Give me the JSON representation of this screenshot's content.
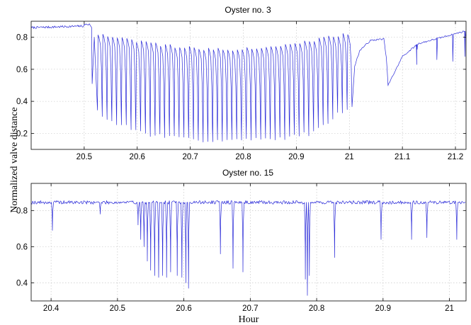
{
  "shared": {
    "ylabel": "Normalized valve distance",
    "xlabel": "Hour"
  },
  "chart_data": [
    {
      "type": "line",
      "title": "Oyster no. 3",
      "xlim": [
        20.4,
        21.22
      ],
      "ylim": [
        0.1,
        0.9
      ],
      "xticks": [
        20.5,
        20.6,
        20.7,
        20.8,
        20.9,
        21,
        21.1,
        21.2
      ],
      "xtick_labels": [
        "20.5",
        "20.6",
        "20.7",
        "20.8",
        "20.9",
        "21",
        "21.1",
        "21.2"
      ],
      "yticks": [
        0.2,
        0.4,
        0.6,
        0.8
      ],
      "ytick_labels": [
        "0.2",
        "0.4",
        "0.6",
        "0.8"
      ],
      "grid": true,
      "color": "#2a2ad8",
      "baseline_segments": [
        {
          "x": [
            20.4,
            20.5
          ],
          "y": 0.86
        },
        {
          "x": [
            20.5,
            20.51
          ],
          "y": 0.88
        }
      ],
      "drop": {
        "x": 20.515,
        "y": 0.51
      },
      "oscillation": {
        "x": [
          20.525,
          21.005
        ],
        "cycles": 53,
        "peak_y": [
          0.82,
          0.75,
          0.72,
          0.75,
          0.82
        ],
        "trough_y": [
          0.3,
          0.2,
          0.16,
          0.16,
          0.16,
          0.2,
          0.38
        ]
      },
      "recovery": [
        {
          "x": 21.01,
          "y": 0.62
        },
        {
          "x": 21.02,
          "y": 0.72
        },
        {
          "x": 21.04,
          "y": 0.78
        },
        {
          "x": 21.065,
          "y": 0.79
        },
        {
          "x": 21.07,
          "y": 0.66
        },
        {
          "x": 21.073,
          "y": 0.5
        },
        {
          "x": 21.085,
          "y": 0.58
        },
        {
          "x": 21.1,
          "y": 0.68
        },
        {
          "x": 21.13,
          "y": 0.76
        },
        {
          "x": 21.22,
          "y": 0.84
        }
      ],
      "spikes": [
        {
          "x": 21.127,
          "y": 0.63
        },
        {
          "x": 21.165,
          "y": 0.66
        },
        {
          "x": 21.195,
          "y": 0.65
        },
        {
          "x": 21.218,
          "y": 0.68
        }
      ]
    },
    {
      "type": "line",
      "title": "Oyster no. 15",
      "xlim": [
        20.37,
        21.025
      ],
      "ylim": [
        0.3,
        0.95
      ],
      "xticks": [
        20.4,
        20.5,
        20.6,
        20.7,
        20.8,
        20.9,
        21
      ],
      "xtick_labels": [
        "20.4",
        "20.5",
        "20.6",
        "20.7",
        "20.8",
        "20.9",
        "21"
      ],
      "yticks": [
        0.4,
        0.6,
        0.8
      ],
      "ytick_labels": [
        "0.4",
        "0.6",
        "0.8"
      ],
      "grid": true,
      "color": "#2a2ad8",
      "baseline_y": 0.845,
      "baseline_noise": 0.01,
      "spikes": [
        {
          "x": 20.402,
          "y": 0.69
        },
        {
          "x": 20.474,
          "y": 0.78
        },
        {
          "x": 20.531,
          "y": 0.72
        },
        {
          "x": 20.535,
          "y": 0.64
        },
        {
          "x": 20.54,
          "y": 0.6
        },
        {
          "x": 20.545,
          "y": 0.52
        },
        {
          "x": 20.55,
          "y": 0.47
        },
        {
          "x": 20.556,
          "y": 0.44
        },
        {
          "x": 20.562,
          "y": 0.43
        },
        {
          "x": 20.568,
          "y": 0.44
        },
        {
          "x": 20.574,
          "y": 0.43
        },
        {
          "x": 20.58,
          "y": 0.46
        },
        {
          "x": 20.59,
          "y": 0.44
        },
        {
          "x": 20.597,
          "y": 0.43
        },
        {
          "x": 20.603,
          "y": 0.4
        },
        {
          "x": 20.607,
          "y": 0.37
        },
        {
          "x": 20.655,
          "y": 0.56
        },
        {
          "x": 20.674,
          "y": 0.48
        },
        {
          "x": 20.689,
          "y": 0.46
        },
        {
          "x": 20.783,
          "y": 0.42
        },
        {
          "x": 20.786,
          "y": 0.33
        },
        {
          "x": 20.789,
          "y": 0.44
        },
        {
          "x": 20.827,
          "y": 0.54
        },
        {
          "x": 20.897,
          "y": 0.64
        },
        {
          "x": 20.943,
          "y": 0.64
        },
        {
          "x": 20.966,
          "y": 0.65
        },
        {
          "x": 21.011,
          "y": 0.64
        }
      ]
    }
  ]
}
